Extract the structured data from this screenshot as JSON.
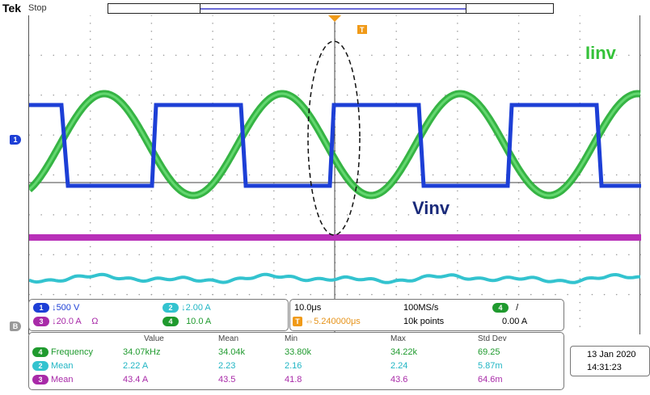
{
  "top": {
    "brand": "Tek",
    "state": "Stop",
    "trigger_marker": "T"
  },
  "labels": {
    "iinv": "Iinv",
    "vinv": "Vinv"
  },
  "channel_markers": {
    "ch1": "1",
    "ref": "B"
  },
  "settings": {
    "ch1": {
      "badge": "1",
      "value": "↓500 V"
    },
    "ch2": {
      "badge": "2",
      "value": "↓2.00 A"
    },
    "ch3": {
      "badge": "3",
      "value": "↓20.0 A",
      "unit_symbol": "Ω"
    },
    "ch4": {
      "badge": "4",
      "value": "10.0 A"
    }
  },
  "timebase": {
    "scale": "10.0μs",
    "sample_rate": "100MS/s",
    "record_length": "10k points",
    "trigger_badge": "T",
    "trigger_position": "⇔5.240000μs",
    "trigger_source_badge": "4",
    "trigger_slope": "/",
    "trigger_level": "0.00 A"
  },
  "measurements": {
    "headers": [
      "Value",
      "Mean",
      "Min",
      "Max",
      "Std Dev"
    ],
    "rows": [
      {
        "badge": "4",
        "name": "Frequency",
        "value": "34.07kHz",
        "mean": "34.04k",
        "min": "33.80k",
        "max": "34.22k",
        "std": "69.25",
        "color": "green"
      },
      {
        "badge": "2",
        "name": "Mean",
        "value": "2.22 A",
        "mean": "2.23",
        "min": "2.16",
        "max": "2.24",
        "std": "5.87m",
        "color": "cyan"
      },
      {
        "badge": "3",
        "name": "Mean",
        "value": "43.4 A",
        "mean": "43.5",
        "min": "41.8",
        "max": "43.6",
        "std": "64.6m",
        "color": "mag"
      }
    ]
  },
  "datetime": {
    "date": "13 Jan 2020",
    "time": "14:31:23"
  },
  "colors": {
    "ch1": "#1d3fd6",
    "ch2": "#33c3cf",
    "ch3": "#a82aa8",
    "ch4": "#35c23a",
    "trigger": "#f09a18"
  }
}
